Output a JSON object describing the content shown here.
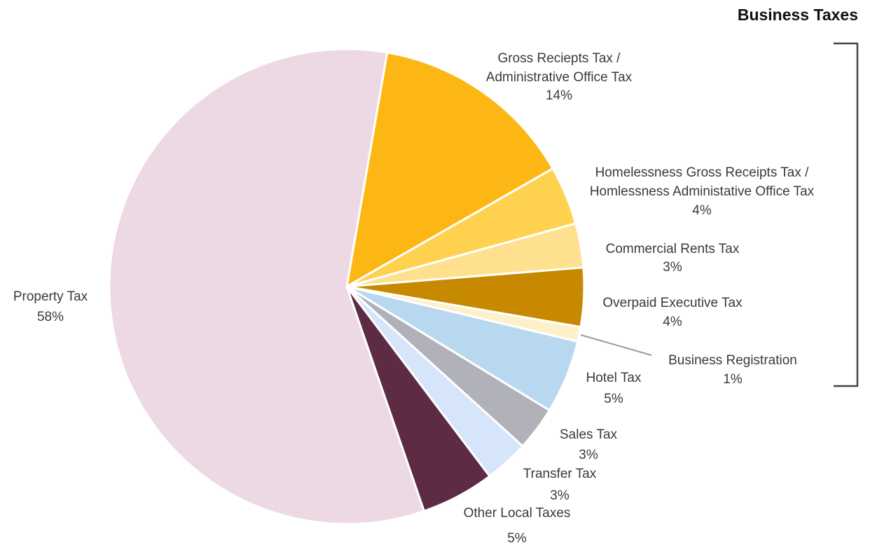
{
  "chart_data": {
    "type": "pie",
    "title": "",
    "group_label": "Business Taxes",
    "start_angle_deg": 9.8,
    "direction": "clockwise",
    "slices": [
      {
        "label": [
          "Gross Reciepts Tax /",
          "Administrative Office Tax"
        ],
        "percent_label": "14%",
        "value": 14,
        "color": "#FDB714",
        "group": "Business Taxes"
      },
      {
        "label": [
          "Homelessness Gross Receipts Tax /",
          "Homlessness Administative Office Tax"
        ],
        "percent_label": "4%",
        "value": 4,
        "color": "#FED24F",
        "group": "Business Taxes"
      },
      {
        "label": [
          "Commercial Rents Tax"
        ],
        "percent_label": "3%",
        "value": 3,
        "color": "#FEE08F",
        "group": "Business Taxes"
      },
      {
        "label": [
          "Overpaid Executive Tax"
        ],
        "percent_label": "4%",
        "value": 4,
        "color": "#C68900",
        "group": "Business Taxes"
      },
      {
        "label": [
          "Business Registration"
        ],
        "percent_label": "1%",
        "value": 1,
        "color": "#FEF0C8",
        "group": "Business Taxes"
      },
      {
        "label": [
          "Hotel Tax"
        ],
        "percent_label": "5%",
        "value": 5,
        "color": "#B8D8F0"
      },
      {
        "label": [
          "Sales Tax"
        ],
        "percent_label": "3%",
        "value": 3,
        "color": "#B1B1B9"
      },
      {
        "label": [
          "Transfer Tax"
        ],
        "percent_label": "3%",
        "value": 3,
        "color": "#D7E5FB"
      },
      {
        "label": [
          "Other Local Taxes"
        ],
        "percent_label": "5%",
        "value": 5,
        "color": "#5E2B45"
      },
      {
        "label": [
          "Property Tax"
        ],
        "percent_label": "58%",
        "value": 58,
        "color": "#EDD9E3"
      }
    ]
  }
}
